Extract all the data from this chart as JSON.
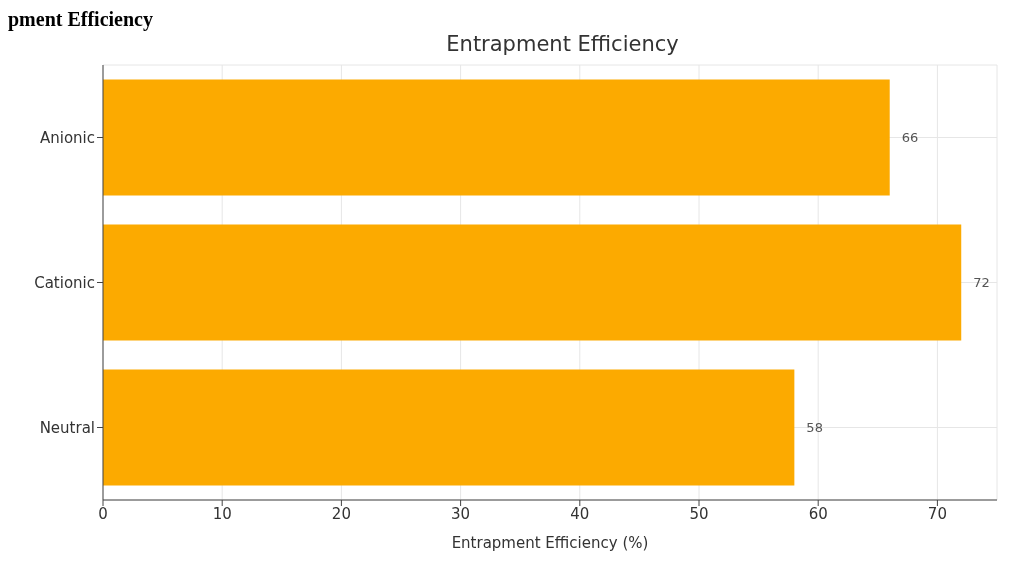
{
  "chart_data": {
    "type": "bar",
    "orientation": "horizontal",
    "title": "Entrapment Efficiency",
    "xlabel": "Entrapment Efficiency (%)",
    "annotations": [
      "pment Efficiency"
    ],
    "categories": [
      "Anionic",
      "Cationic",
      "Neutral"
    ],
    "values": [
      66,
      72,
      58
    ],
    "color": "#fcaa00",
    "xlim": [
      0,
      75
    ],
    "xticks": [
      0,
      10,
      20,
      30,
      40,
      50,
      60,
      70
    ],
    "grid": true,
    "data_labels": true
  }
}
